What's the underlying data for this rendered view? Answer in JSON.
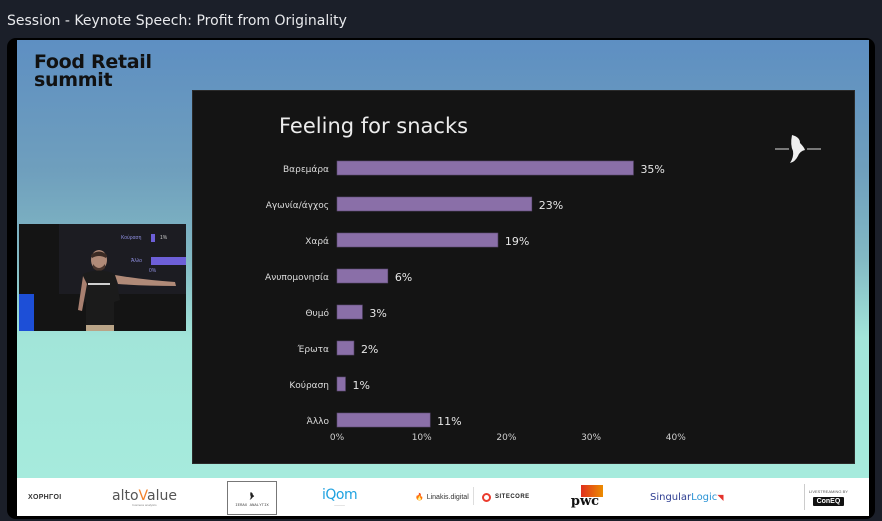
{
  "window": {
    "title": "Session - Keynote Speech: Profit from Originality"
  },
  "stage": {
    "brand_line1": "Food Retail",
    "brand_line2": "summit"
  },
  "slide": {
    "title": "Feeling for snacks"
  },
  "chart_data": {
    "type": "bar",
    "orientation": "horizontal",
    "title": "Feeling for snacks",
    "categories": [
      "Βαρεμάρα",
      "Αγωνία/άγχος",
      "Χαρά",
      "Ανυπομονησία",
      "Θυμό",
      "Έρωτα",
      "Κούραση",
      "Άλλο"
    ],
    "values": [
      35,
      23,
      19,
      6,
      3,
      2,
      1,
      11
    ],
    "value_labels": [
      "35%",
      "23%",
      "19%",
      "6%",
      "3%",
      "2%",
      "1%",
      "11%"
    ],
    "xlim": [
      0,
      40
    ],
    "xticks": [
      0,
      10,
      20,
      30,
      40
    ],
    "xtick_labels": [
      "0%",
      "10%",
      "20%",
      "30%",
      "40%"
    ],
    "bar_color": "#8a6fa8",
    "grid": false
  },
  "camera": {
    "screen_labels": [
      "Κούραση",
      "1%",
      "Άλλο",
      "0%"
    ]
  },
  "sponsors": {
    "label": "ΧΟΡΗΓΟΙ",
    "items": [
      {
        "name": "altoValue",
        "part1": "alto",
        "part2": "V",
        "part3": "alue",
        "tagline": "business analytics"
      },
      {
        "name": "IERAX ANALYTIX"
      },
      {
        "name": "iQom",
        "part1": "i",
        "part2": "Qom"
      },
      {
        "name": "Linakis.digital"
      },
      {
        "name": "SITECORE"
      },
      {
        "name": "pwc"
      },
      {
        "name": "SingularLogic",
        "part1": "Singular",
        "part2": "Logic"
      }
    ],
    "livestream_label": "LIVESTREAMING BY",
    "livestream_brand": "ConEQ"
  }
}
